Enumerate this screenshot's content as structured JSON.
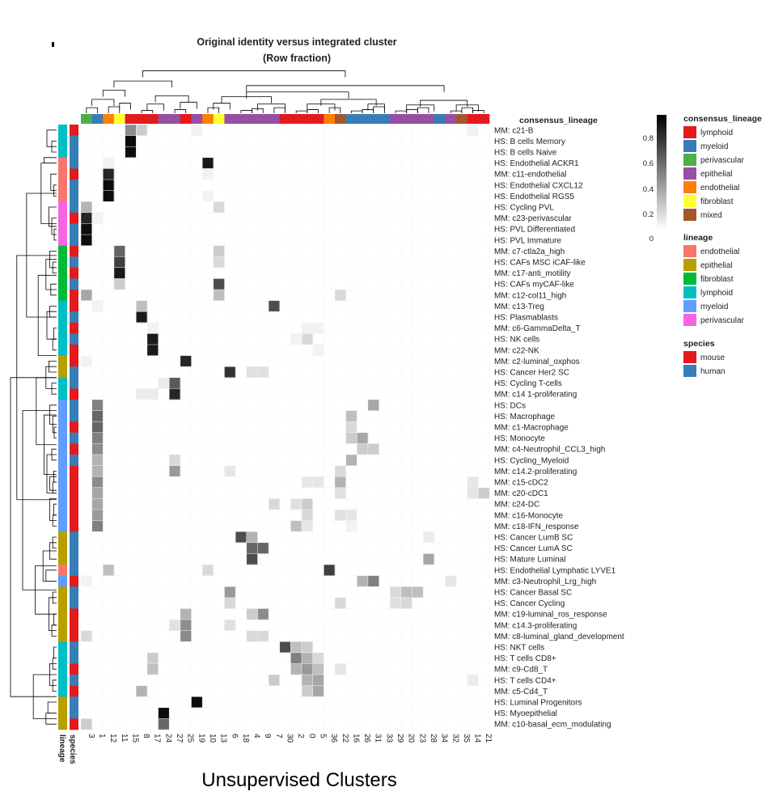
{
  "chart_data": {
    "type": "heatmap",
    "title": "Original identity versus integrated cluster",
    "subtitle": "(Row fraction)",
    "xlabel": "Unsupervised Clusters",
    "annotation_titles": {
      "top": "consensus_lineage",
      "left_inner": "species",
      "left_outer": "lineage"
    },
    "columns": [
      "3",
      "1",
      "12",
      "11",
      "15",
      "8",
      "17",
      "24",
      "27",
      "25",
      "19",
      "10",
      "13",
      "6",
      "18",
      "4",
      "9",
      "7",
      "30",
      "2",
      "0",
      "5",
      "36",
      "22",
      "16",
      "26",
      "31",
      "33",
      "29",
      "20",
      "23",
      "28",
      "34",
      "32",
      "35",
      "14",
      "21"
    ],
    "column_consensus_lineage": [
      "perivascular",
      "myeloid",
      "endothelial",
      "fibroblast",
      "lymphoid",
      "lymphoid",
      "lymphoid",
      "epithelial",
      "epithelial",
      "lymphoid",
      "epithelial",
      "endothelial",
      "fibroblast",
      "epithelial",
      "epithelial",
      "epithelial",
      "epithelial",
      "epithelial",
      "lymphoid",
      "lymphoid",
      "lymphoid",
      "lymphoid",
      "endothelial",
      "mixed",
      "myeloid",
      "myeloid",
      "myeloid",
      "myeloid",
      "epithelial",
      "epithelial",
      "epithelial",
      "epithelial",
      "myeloid",
      "epithelial",
      "mixed",
      "lymphoid",
      "lymphoid"
    ],
    "rows": [
      {
        "label": "MM: c21-B",
        "lineage": "lymphoid",
        "species": "mouse"
      },
      {
        "label": "HS: B cells Memory",
        "lineage": "lymphoid",
        "species": "human"
      },
      {
        "label": "HS: B cells Naive",
        "lineage": "lymphoid",
        "species": "human"
      },
      {
        "label": "HS: Endothelial ACKR1",
        "lineage": "endothelial",
        "species": "human"
      },
      {
        "label": "MM: c11-endothelial",
        "lineage": "endothelial",
        "species": "mouse"
      },
      {
        "label": "HS: Endothelial CXCL12",
        "lineage": "endothelial",
        "species": "human"
      },
      {
        "label": "HS: Endothelial RGS5",
        "lineage": "endothelial",
        "species": "human"
      },
      {
        "label": "HS: Cycling PVL",
        "lineage": "perivascular",
        "species": "human"
      },
      {
        "label": "MM: c23-perivascular",
        "lineage": "perivascular",
        "species": "mouse"
      },
      {
        "label": "HS: PVL Differentiated",
        "lineage": "perivascular",
        "species": "human"
      },
      {
        "label": "HS: PVL Immature",
        "lineage": "perivascular",
        "species": "human"
      },
      {
        "label": "MM: c7-ctla2a_high",
        "lineage": "fibroblast",
        "species": "mouse"
      },
      {
        "label": "HS: CAFs MSC iCAF-like",
        "lineage": "fibroblast",
        "species": "human"
      },
      {
        "label": "MM: c17-anti_motility",
        "lineage": "fibroblast",
        "species": "mouse"
      },
      {
        "label": "HS: CAFs myCAF-like",
        "lineage": "fibroblast",
        "species": "human"
      },
      {
        "label": "MM: c12-col11_high",
        "lineage": "fibroblast",
        "species": "mouse"
      },
      {
        "label": "MM: c13-Treg",
        "lineage": "lymphoid",
        "species": "mouse"
      },
      {
        "label": "HS: Plasmablasts",
        "lineage": "lymphoid",
        "species": "human"
      },
      {
        "label": "MM: c6-GammaDelta_T",
        "lineage": "lymphoid",
        "species": "mouse"
      },
      {
        "label": "HS: NK cells",
        "lineage": "lymphoid",
        "species": "human"
      },
      {
        "label": "MM: c22-NK",
        "lineage": "lymphoid",
        "species": "mouse"
      },
      {
        "label": "MM: c2-luminal_oxphos",
        "lineage": "epithelial",
        "species": "mouse"
      },
      {
        "label": "HS: Cancer Her2 SC",
        "lineage": "epithelial",
        "species": "human"
      },
      {
        "label": "HS: Cycling T-cells",
        "lineage": "lymphoid",
        "species": "human"
      },
      {
        "label": "MM: c14 1-proliferating",
        "lineage": "lymphoid",
        "species": "mouse"
      },
      {
        "label": "HS: DCs",
        "lineage": "myeloid",
        "species": "human"
      },
      {
        "label": "HS: Macrophage",
        "lineage": "myeloid",
        "species": "human"
      },
      {
        "label": "MM: c1-Macrophage",
        "lineage": "myeloid",
        "species": "mouse"
      },
      {
        "label": "HS: Monocyte",
        "lineage": "myeloid",
        "species": "human"
      },
      {
        "label": "MM: c4-Neutrophil_CCL3_high",
        "lineage": "myeloid",
        "species": "mouse"
      },
      {
        "label": "HS: Cycling_Myeloid",
        "lineage": "myeloid",
        "species": "human"
      },
      {
        "label": "MM: c14.2-proliferating",
        "lineage": "myeloid",
        "species": "mouse"
      },
      {
        "label": "MM: c15-cDC2",
        "lineage": "myeloid",
        "species": "mouse"
      },
      {
        "label": "MM: c20-cDC1",
        "lineage": "myeloid",
        "species": "mouse"
      },
      {
        "label": "MM: c24-DC",
        "lineage": "myeloid",
        "species": "mouse"
      },
      {
        "label": "MM: c16-Monocyte",
        "lineage": "myeloid",
        "species": "mouse"
      },
      {
        "label": "MM: c18-IFN_response",
        "lineage": "myeloid",
        "species": "mouse"
      },
      {
        "label": "HS: Cancer LumB SC",
        "lineage": "epithelial",
        "species": "human"
      },
      {
        "label": "HS: Cancer LumA SC",
        "lineage": "epithelial",
        "species": "human"
      },
      {
        "label": "HS: Mature Luminal",
        "lineage": "epithelial",
        "species": "human"
      },
      {
        "label": "HS: Endothelial Lymphatic LYVE1",
        "lineage": "endothelial",
        "species": "human"
      },
      {
        "label": "MM: c3-Neutrophil_Lrg_high",
        "lineage": "myeloid",
        "species": "mouse"
      },
      {
        "label": "HS: Cancer Basal SC",
        "lineage": "epithelial",
        "species": "human"
      },
      {
        "label": "HS: Cancer Cycling",
        "lineage": "epithelial",
        "species": "human"
      },
      {
        "label": "MM: c19-luminal_ros_response",
        "lineage": "epithelial",
        "species": "mouse"
      },
      {
        "label": "MM: c14.3-proliferating",
        "lineage": "epithelial",
        "species": "mouse"
      },
      {
        "label": "MM: c8-luminal_gland_development",
        "lineage": "epithelial",
        "species": "mouse"
      },
      {
        "label": "HS: NKT cells",
        "lineage": "lymphoid",
        "species": "human"
      },
      {
        "label": "HS: T cells CD8+",
        "lineage": "lymphoid",
        "species": "human"
      },
      {
        "label": "MM: c9-Cd8_T",
        "lineage": "lymphoid",
        "species": "mouse"
      },
      {
        "label": "HS: T cells CD4+",
        "lineage": "lymphoid",
        "species": "human"
      },
      {
        "label": "MM: c5-Cd4_T",
        "lineage": "lymphoid",
        "species": "mouse"
      },
      {
        "label": "HS: Luminal Progenitors",
        "lineage": "epithelial",
        "species": "human"
      },
      {
        "label": "HS: Myoepithelial",
        "lineage": "epithelial",
        "species": "human"
      },
      {
        "label": "MM: c10-basal_ecm_modulating",
        "lineage": "epithelial",
        "species": "mouse"
      }
    ],
    "cells": [
      [
        0,
        4,
        0.45
      ],
      [
        0,
        5,
        0.2
      ],
      [
        0,
        10,
        0.05
      ],
      [
        0,
        35,
        0.05
      ],
      [
        1,
        4,
        0.95
      ],
      [
        2,
        4,
        0.95
      ],
      [
        3,
        11,
        0.9
      ],
      [
        3,
        2,
        0.05
      ],
      [
        4,
        2,
        0.85
      ],
      [
        4,
        11,
        0.05
      ],
      [
        5,
        2,
        0.95
      ],
      [
        6,
        2,
        0.95
      ],
      [
        6,
        11,
        0.05
      ],
      [
        7,
        0,
        0.3
      ],
      [
        7,
        12,
        0.15
      ],
      [
        8,
        0,
        0.85
      ],
      [
        8,
        1,
        0.05
      ],
      [
        9,
        0,
        0.95
      ],
      [
        10,
        0,
        0.95
      ],
      [
        11,
        3,
        0.6
      ],
      [
        11,
        12,
        0.2
      ],
      [
        12,
        3,
        0.75
      ],
      [
        12,
        12,
        0.15
      ],
      [
        13,
        3,
        0.9
      ],
      [
        14,
        3,
        0.2
      ],
      [
        14,
        12,
        0.7
      ],
      [
        15,
        0,
        0.35
      ],
      [
        15,
        12,
        0.25
      ],
      [
        15,
        23,
        0.15
      ],
      [
        16,
        5,
        0.25
      ],
      [
        16,
        17,
        0.7
      ],
      [
        16,
        1,
        0.05
      ],
      [
        17,
        5,
        0.9
      ],
      [
        18,
        6,
        0.05
      ],
      [
        18,
        21,
        0.05
      ],
      [
        18,
        20,
        0.05
      ],
      [
        19,
        6,
        0.9
      ],
      [
        19,
        20,
        0.15
      ],
      [
        19,
        19,
        0.05
      ],
      [
        20,
        6,
        0.9
      ],
      [
        20,
        21,
        0.05
      ],
      [
        21,
        9,
        0.85
      ],
      [
        21,
        0,
        0.05
      ],
      [
        22,
        13,
        0.8
      ],
      [
        22,
        15,
        0.12
      ],
      [
        22,
        16,
        0.12
      ],
      [
        23,
        8,
        0.65
      ],
      [
        23,
        7,
        0.08
      ],
      [
        24,
        8,
        0.85
      ],
      [
        24,
        5,
        0.08
      ],
      [
        24,
        6,
        0.08
      ],
      [
        25,
        1,
        0.5
      ],
      [
        25,
        26,
        0.35
      ],
      [
        26,
        1,
        0.6
      ],
      [
        26,
        24,
        0.25
      ],
      [
        27,
        1,
        0.6
      ],
      [
        27,
        24,
        0.15
      ],
      [
        28,
        1,
        0.5
      ],
      [
        28,
        24,
        0.2
      ],
      [
        28,
        25,
        0.35
      ],
      [
        29,
        1,
        0.45
      ],
      [
        29,
        25,
        0.2
      ],
      [
        29,
        26,
        0.2
      ],
      [
        30,
        1,
        0.3
      ],
      [
        30,
        8,
        0.15
      ],
      [
        30,
        24,
        0.3
      ],
      [
        31,
        1,
        0.3
      ],
      [
        31,
        8,
        0.4
      ],
      [
        31,
        13,
        0.1
      ],
      [
        31,
        23,
        0.15
      ],
      [
        32,
        1,
        0.45
      ],
      [
        32,
        20,
        0.1
      ],
      [
        32,
        21,
        0.1
      ],
      [
        32,
        23,
        0.3
      ],
      [
        32,
        35,
        0.1
      ],
      [
        33,
        1,
        0.35
      ],
      [
        33,
        23,
        0.12
      ],
      [
        33,
        35,
        0.1
      ],
      [
        33,
        36,
        0.2
      ],
      [
        34,
        1,
        0.35
      ],
      [
        34,
        17,
        0.15
      ],
      [
        34,
        20,
        0.2
      ],
      [
        34,
        19,
        0.12
      ],
      [
        35,
        1,
        0.4
      ],
      [
        35,
        20,
        0.15
      ],
      [
        35,
        23,
        0.12
      ],
      [
        35,
        24,
        0.1
      ],
      [
        36,
        1,
        0.5
      ],
      [
        36,
        19,
        0.25
      ],
      [
        36,
        20,
        0.1
      ],
      [
        36,
        24,
        0.05
      ],
      [
        37,
        14,
        0.7
      ],
      [
        37,
        15,
        0.3
      ],
      [
        37,
        31,
        0.08
      ],
      [
        38,
        15,
        0.6
      ],
      [
        38,
        16,
        0.6
      ],
      [
        39,
        15,
        0.7
      ],
      [
        39,
        31,
        0.35
      ],
      [
        40,
        2,
        0.25
      ],
      [
        40,
        11,
        0.15
      ],
      [
        40,
        22,
        0.75
      ],
      [
        41,
        0,
        0.05
      ],
      [
        41,
        25,
        0.3
      ],
      [
        41,
        26,
        0.5
      ],
      [
        41,
        33,
        0.1
      ],
      [
        42,
        13,
        0.4
      ],
      [
        42,
        28,
        0.15
      ],
      [
        42,
        29,
        0.25
      ],
      [
        42,
        30,
        0.25
      ],
      [
        43,
        13,
        0.15
      ],
      [
        43,
        28,
        0.12
      ],
      [
        43,
        29,
        0.15
      ],
      [
        43,
        23,
        0.15
      ],
      [
        44,
        9,
        0.3
      ],
      [
        44,
        16,
        0.45
      ],
      [
        44,
        15,
        0.2
      ],
      [
        45,
        9,
        0.45
      ],
      [
        45,
        8,
        0.12
      ],
      [
        45,
        13,
        0.12
      ],
      [
        46,
        0,
        0.15
      ],
      [
        46,
        9,
        0.45
      ],
      [
        46,
        15,
        0.15
      ],
      [
        46,
        16,
        0.15
      ],
      [
        47,
        18,
        0.7
      ],
      [
        47,
        19,
        0.25
      ],
      [
        47,
        20,
        0.2
      ],
      [
        48,
        6,
        0.2
      ],
      [
        48,
        19,
        0.5
      ],
      [
        48,
        20,
        0.3
      ],
      [
        48,
        21,
        0.15
      ],
      [
        49,
        6,
        0.25
      ],
      [
        49,
        19,
        0.3
      ],
      [
        49,
        20,
        0.4
      ],
      [
        49,
        21,
        0.25
      ],
      [
        49,
        23,
        0.1
      ],
      [
        50,
        17,
        0.2
      ],
      [
        50,
        20,
        0.3
      ],
      [
        50,
        21,
        0.35
      ],
      [
        50,
        35,
        0.08
      ],
      [
        51,
        5,
        0.3
      ],
      [
        51,
        20,
        0.2
      ],
      [
        51,
        21,
        0.35
      ],
      [
        52,
        10,
        0.95
      ],
      [
        53,
        7,
        0.95
      ],
      [
        54,
        7,
        0.6
      ],
      [
        54,
        0,
        0.2
      ]
    ],
    "colorbar": {
      "range": [
        0,
        1
      ],
      "ticks": [
        "0.8",
        "0.6",
        "0.4",
        "0.2",
        "0"
      ],
      "colors": [
        "#ffffff",
        "#000000"
      ]
    },
    "legends": {
      "consensus_lineage": {
        "title": "consensus_lineage",
        "items": [
          {
            "label": "lymphoid",
            "color": "#e41a1c"
          },
          {
            "label": "myeloid",
            "color": "#377eb8"
          },
          {
            "label": "perivascular",
            "color": "#4daf4a"
          },
          {
            "label": "epithelial",
            "color": "#984ea3"
          },
          {
            "label": "endothelial",
            "color": "#ff7f00"
          },
          {
            "label": "fibroblast",
            "color": "#ffff33"
          },
          {
            "label": "mixed",
            "color": "#a65628"
          }
        ]
      },
      "lineage": {
        "title": "lineage",
        "items": [
          {
            "label": "endothelial",
            "color": "#f8766d"
          },
          {
            "label": "epithelial",
            "color": "#b79f00"
          },
          {
            "label": "fibroblast",
            "color": "#00ba38"
          },
          {
            "label": "lymphoid",
            "color": "#00bfc4"
          },
          {
            "label": "myeloid",
            "color": "#619cff"
          },
          {
            "label": "perivascular",
            "color": "#f564e3"
          }
        ]
      },
      "species": {
        "title": "species",
        "items": [
          {
            "label": "mouse",
            "color": "#e41a1c"
          },
          {
            "label": "human",
            "color": "#377eb8"
          }
        ]
      }
    }
  }
}
